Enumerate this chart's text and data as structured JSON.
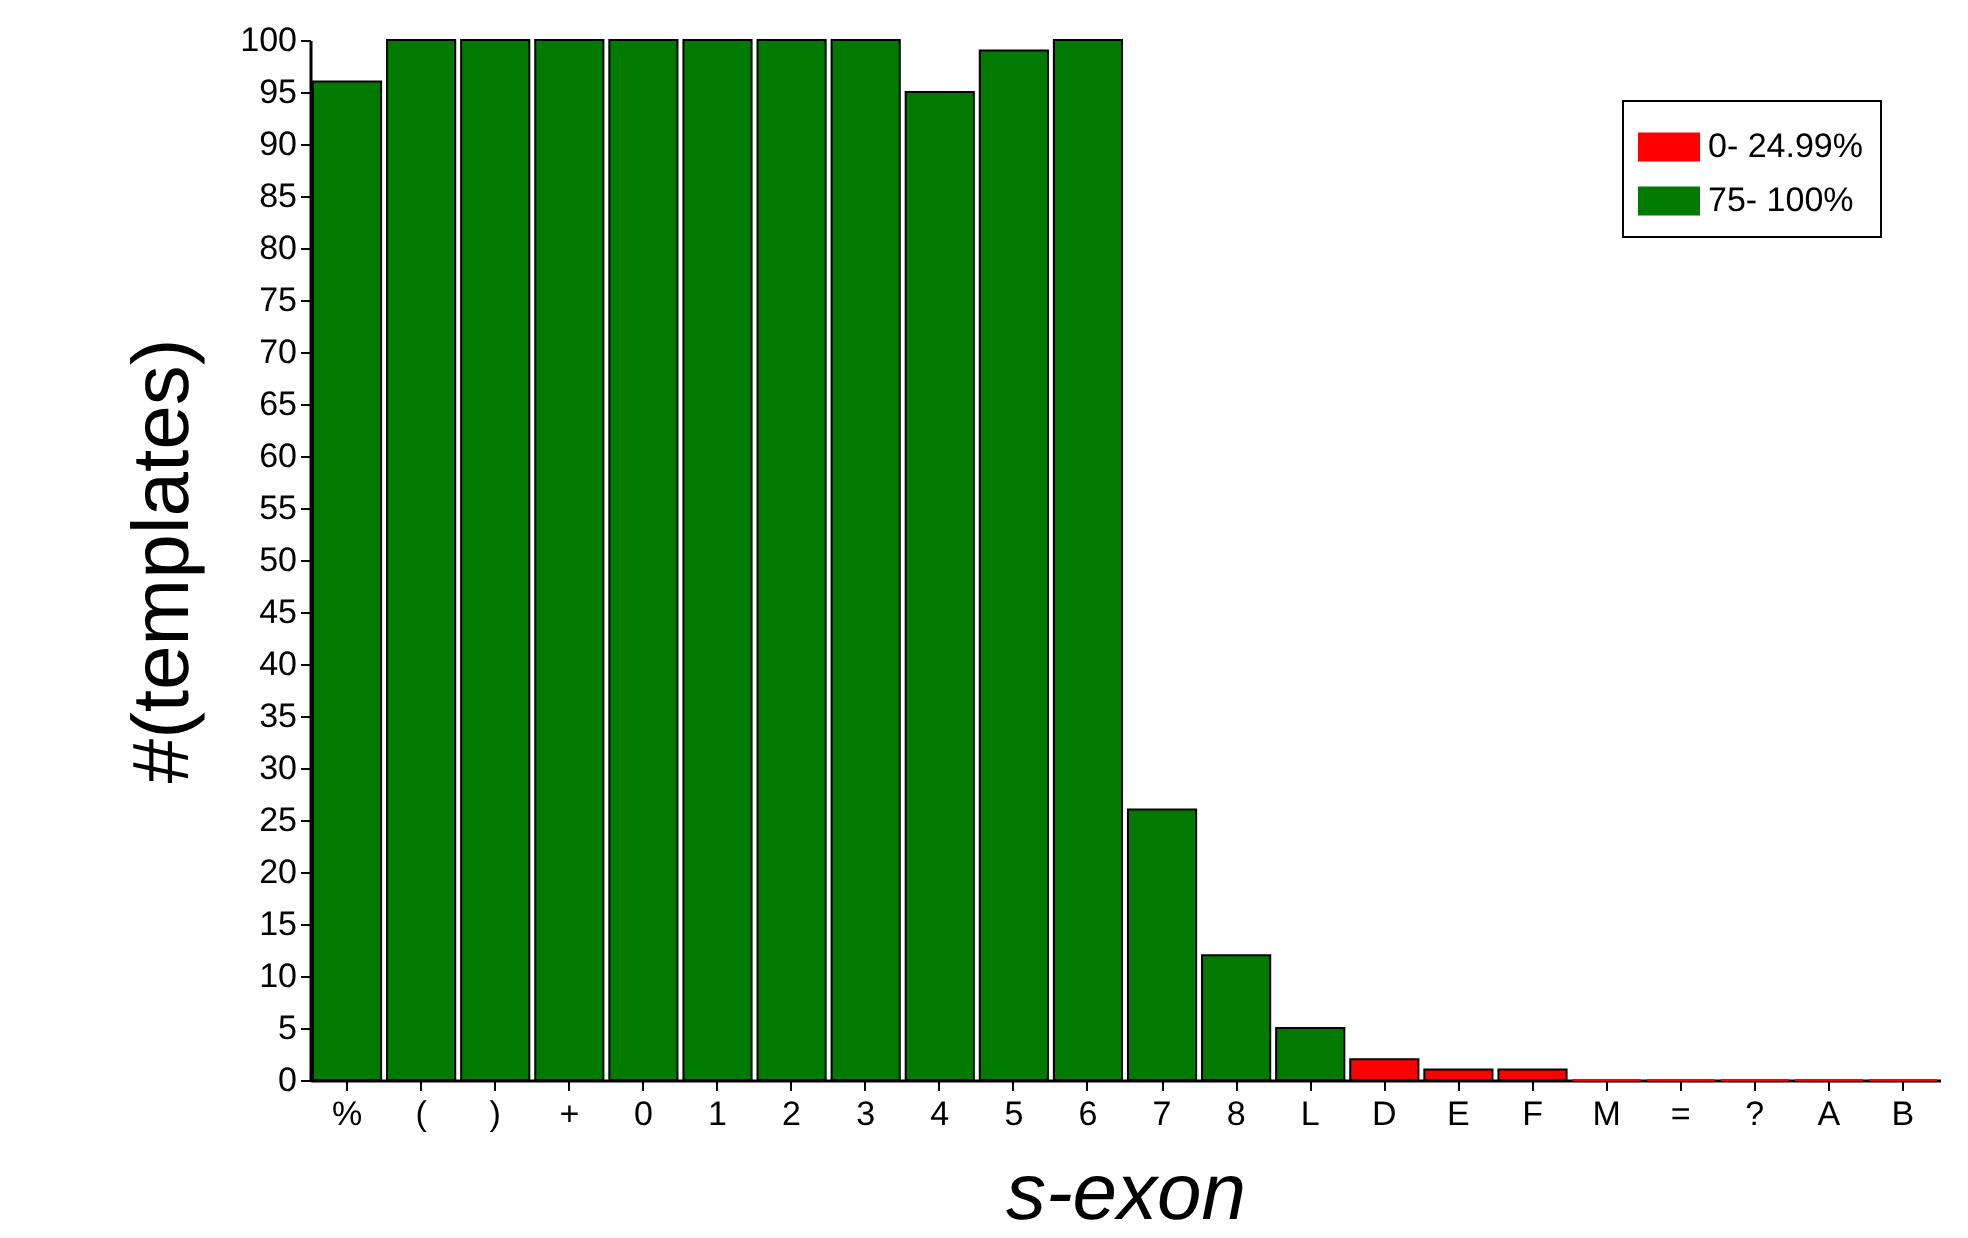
{
  "chart_data": {
    "type": "bar",
    "xlabel": "s-exon",
    "ylabel": "#(templates)",
    "categories": [
      "%",
      "(",
      ")",
      "+",
      "0",
      "1",
      "2",
      "3",
      "4",
      "5",
      "6",
      "7",
      "8",
      "L",
      "D",
      "E",
      "F",
      "M",
      "=",
      "?",
      "A",
      "B"
    ],
    "series": [
      {
        "name": "0- 24.99%",
        "color": "#ff0000",
        "values": [
          null,
          null,
          null,
          null,
          null,
          null,
          null,
          null,
          null,
          null,
          null,
          null,
          null,
          null,
          2,
          1,
          1,
          0,
          0,
          0,
          0,
          0
        ]
      },
      {
        "name": "75- 100%",
        "color": "#007a00",
        "values": [
          96,
          100,
          100,
          100,
          100,
          100,
          100,
          100,
          95,
          99,
          100,
          26,
          12,
          5,
          null,
          null,
          null,
          null,
          null,
          null,
          null,
          null
        ]
      }
    ],
    "stacked": true,
    "ylim": [
      0,
      100
    ],
    "yticks": [
      0,
      5,
      10,
      15,
      20,
      25,
      30,
      35,
      40,
      45,
      50,
      55,
      60,
      65,
      70,
      75,
      80,
      85,
      90,
      95,
      100
    ],
    "grid": false,
    "legend": "top right"
  }
}
